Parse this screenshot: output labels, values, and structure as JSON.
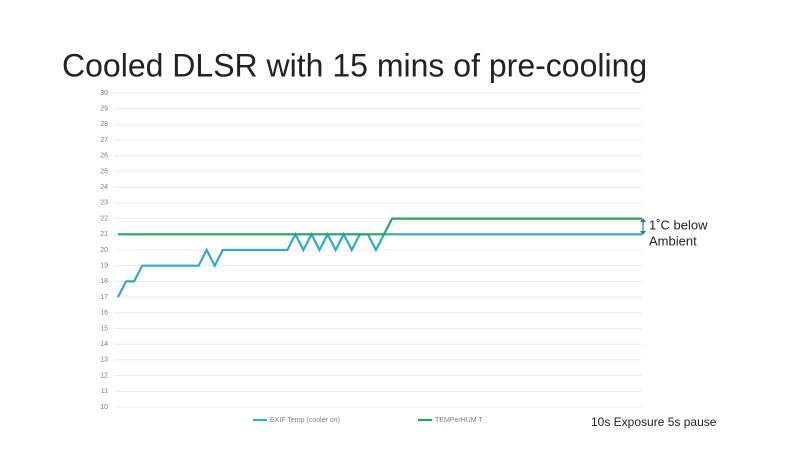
{
  "chart_data": {
    "type": "line",
    "title": "Cooled DLSR with 15 mins of pre-cooling",
    "categories": [
      null,
      null,
      null,
      null,
      null,
      null,
      null,
      null,
      null,
      null,
      null,
      null,
      null,
      null,
      null,
      null,
      null,
      null,
      null,
      null,
      null,
      null,
      null,
      null,
      null,
      null,
      null,
      null,
      null,
      null,
      null,
      null,
      null,
      null,
      null,
      null,
      null,
      null,
      null,
      null,
      null,
      null,
      null,
      null,
      null,
      null,
      null,
      null,
      null,
      null,
      null,
      null,
      null,
      null,
      null,
      null,
      null,
      null,
      null,
      null,
      null,
      null,
      null,
      null,
      null,
      null
    ],
    "series": [
      {
        "name": "EXIF Temp (cooler on)",
        "color": "#2eaacb",
        "values": [
          17,
          18,
          18,
          19,
          19,
          19,
          19,
          19,
          19,
          19,
          19,
          20,
          19,
          20,
          20,
          20,
          20,
          20,
          20,
          20,
          20,
          20,
          21,
          20,
          21,
          20,
          21,
          20,
          21,
          20,
          21,
          21,
          20,
          21,
          21,
          21,
          21,
          21,
          21,
          21,
          21,
          21,
          21,
          21,
          21,
          21,
          21,
          21,
          21,
          21,
          21,
          21,
          21,
          21,
          21,
          21,
          21,
          21,
          21,
          21,
          21,
          21,
          21,
          21,
          21,
          21
        ]
      },
      {
        "name": "TEMPerHUM T",
        "color": "#27a55a",
        "values": [
          21,
          21,
          21,
          21,
          21,
          21,
          21,
          21,
          21,
          21,
          21,
          21,
          21,
          21,
          21,
          21,
          21,
          21,
          21,
          21,
          21,
          21,
          21,
          21,
          21,
          21,
          21,
          21,
          21,
          21,
          21,
          21,
          21,
          21,
          22,
          22,
          22,
          22,
          22,
          22,
          22,
          22,
          22,
          22,
          22,
          22,
          22,
          22,
          22,
          22,
          22,
          22,
          22,
          22,
          22,
          22,
          22,
          22,
          22,
          22,
          22,
          22,
          22,
          22,
          22,
          22
        ]
      }
    ],
    "ylim": [
      10,
      30
    ],
    "yticks": [
      10,
      11,
      12,
      13,
      14,
      15,
      16,
      17,
      18,
      19,
      20,
      21,
      22,
      23,
      24,
      25,
      26,
      27,
      28,
      29,
      30
    ],
    "grid": true,
    "legend": "bottom",
    "annotations": [
      "1˚C below",
      "Ambient",
      "10s Exposure 5s pause"
    ]
  }
}
